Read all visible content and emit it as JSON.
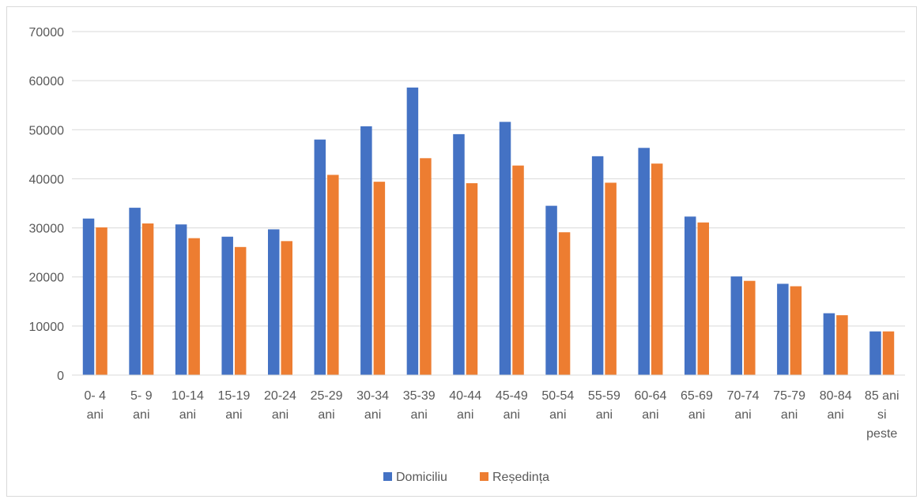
{
  "chart_data": {
    "type": "bar",
    "title": "",
    "xlabel": "",
    "ylabel": "",
    "ylim": [
      0,
      70000
    ],
    "y_ticks": [
      0,
      10000,
      20000,
      30000,
      40000,
      50000,
      60000,
      70000
    ],
    "grid": true,
    "legend_position": "bottom",
    "categories": [
      [
        "0- 4",
        "ani"
      ],
      [
        "5- 9",
        "ani"
      ],
      [
        "10-14",
        "ani"
      ],
      [
        "15-19",
        "ani"
      ],
      [
        "20-24",
        "ani"
      ],
      [
        "25-29",
        "ani"
      ],
      [
        "30-34",
        "ani"
      ],
      [
        "35-39",
        "ani"
      ],
      [
        "40-44",
        "ani"
      ],
      [
        "45-49",
        "ani"
      ],
      [
        "50-54",
        "ani"
      ],
      [
        "55-59",
        "ani"
      ],
      [
        "60-64",
        "ani"
      ],
      [
        "65-69",
        "ani"
      ],
      [
        "70-74",
        "ani"
      ],
      [
        "75-79",
        "ani"
      ],
      [
        "80-84",
        "ani"
      ],
      [
        "85 ani",
        "si",
        "peste"
      ]
    ],
    "series": [
      {
        "name": "Domiciliu",
        "color": "#4472c4",
        "values": [
          31900,
          34100,
          30700,
          28200,
          29700,
          48000,
          50700,
          58600,
          49100,
          51600,
          34500,
          44600,
          46300,
          32300,
          20100,
          18600,
          12600,
          8900
        ]
      },
      {
        "name": "Reședința",
        "color": "#ed7d31",
        "values": [
          30100,
          30900,
          27900,
          26100,
          27300,
          40800,
          39400,
          44200,
          39100,
          42700,
          29100,
          39200,
          43100,
          31100,
          19200,
          18100,
          12200,
          8900
        ]
      }
    ]
  }
}
